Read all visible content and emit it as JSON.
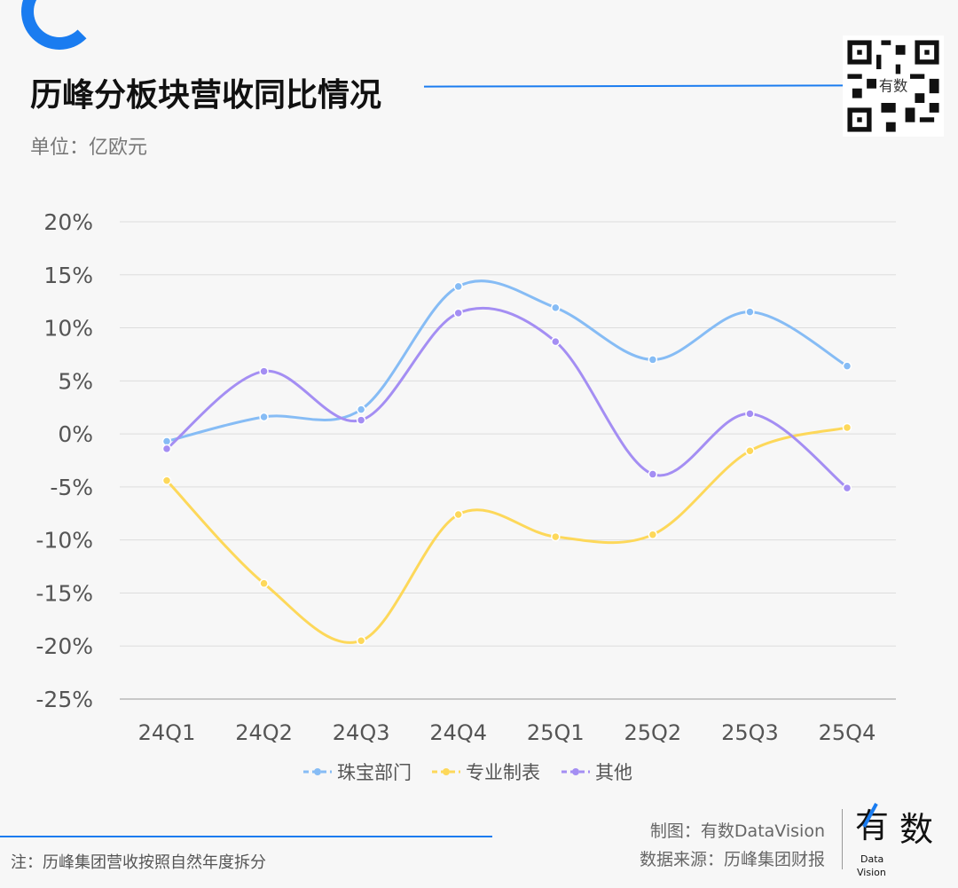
{
  "header": {
    "title": "历峰分板块营收同比情况",
    "unit": "单位：亿欧元"
  },
  "footer": {
    "note": "注：历峰集团营收按照自然年度拆分",
    "made_by": "制图：有数DataVision",
    "source": "数据来源：历峰集团财报",
    "logo_text": "有数 Data Vision"
  },
  "colors": {
    "accent": "#1a7cf0"
  },
  "chart_data": {
    "type": "line",
    "title": "历峰分板块营收同比情况",
    "categories": [
      "24Q1",
      "24Q2",
      "24Q3",
      "24Q4",
      "25Q1",
      "25Q2",
      "25Q3",
      "25Q4"
    ],
    "ylim": [
      -25,
      20
    ],
    "yticks": [
      "20%",
      "15%",
      "10%",
      "5%",
      "0%",
      "-5%",
      "-10%",
      "-15%",
      "-20%",
      "-25%"
    ],
    "ytick_values": [
      20,
      15,
      10,
      5,
      0,
      -5,
      -10,
      -15,
      -20,
      -25
    ],
    "grid": true,
    "smooth": true,
    "legend_position": "bottom",
    "series": [
      {
        "name": "珠宝部门",
        "color": "#86bcf5",
        "values": [
          -0.7,
          1.6,
          2.3,
          13.9,
          11.9,
          7.0,
          11.5,
          6.4
        ]
      },
      {
        "name": "专业制表",
        "color": "#fdd85a",
        "values": [
          -4.4,
          -14.1,
          -19.5,
          -7.6,
          -9.7,
          -9.5,
          -1.6,
          0.6
        ]
      },
      {
        "name": "其他",
        "color": "#a48ef3",
        "values": [
          -1.4,
          5.9,
          1.3,
          11.4,
          8.7,
          -3.8,
          1.9,
          -5.1
        ]
      }
    ]
  }
}
